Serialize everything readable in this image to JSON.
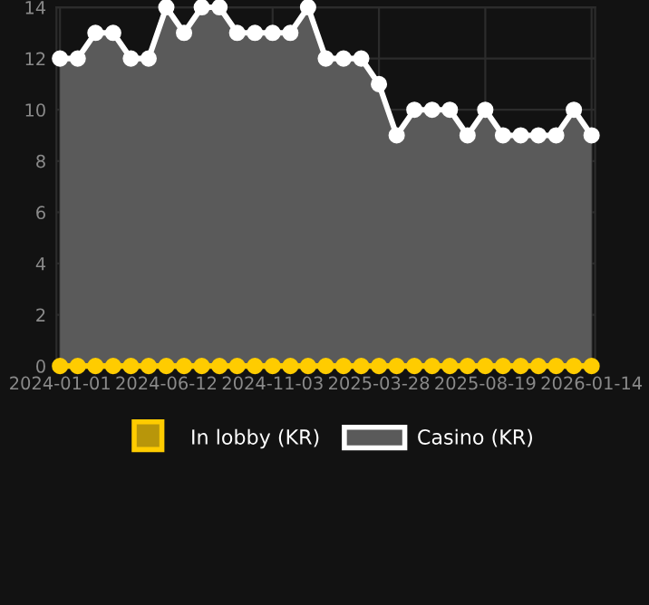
{
  "chart_data": {
    "type": "area",
    "categories": [
      "2024-01-01",
      null,
      null,
      null,
      null,
      null,
      "2024-06-12",
      null,
      null,
      null,
      null,
      null,
      "2024-11-03",
      null,
      null,
      null,
      null,
      null,
      "2025-03-28",
      null,
      null,
      null,
      null,
      null,
      "2025-08-19",
      null,
      null,
      null,
      null,
      null,
      "2026-01-14"
    ],
    "series": [
      {
        "name": "In lobby (KR)",
        "color": "#ffcc00",
        "type": "line",
        "values": [
          0,
          0,
          0,
          0,
          0,
          0,
          0,
          0,
          0,
          0,
          0,
          0,
          0,
          0,
          0,
          0,
          0,
          0,
          0,
          0,
          0,
          0,
          0,
          0,
          0,
          0,
          0,
          0,
          0,
          0,
          0
        ]
      },
      {
        "name": "Casino (KR)",
        "color": "#ffffff",
        "values": [
          12,
          12,
          13,
          13,
          12,
          12,
          14,
          13,
          14,
          14,
          13,
          13,
          13,
          13,
          14,
          12,
          12,
          12,
          11,
          9,
          10,
          10,
          10,
          9,
          10,
          9,
          9,
          9,
          9,
          10,
          9
        ]
      }
    ],
    "ylim": [
      0,
      14
    ],
    "yticks": [
      0,
      2,
      4,
      6,
      8,
      10,
      12,
      14
    ],
    "grid": true,
    "legend": "bottom",
    "marker": "circle",
    "line_style": "solid"
  }
}
